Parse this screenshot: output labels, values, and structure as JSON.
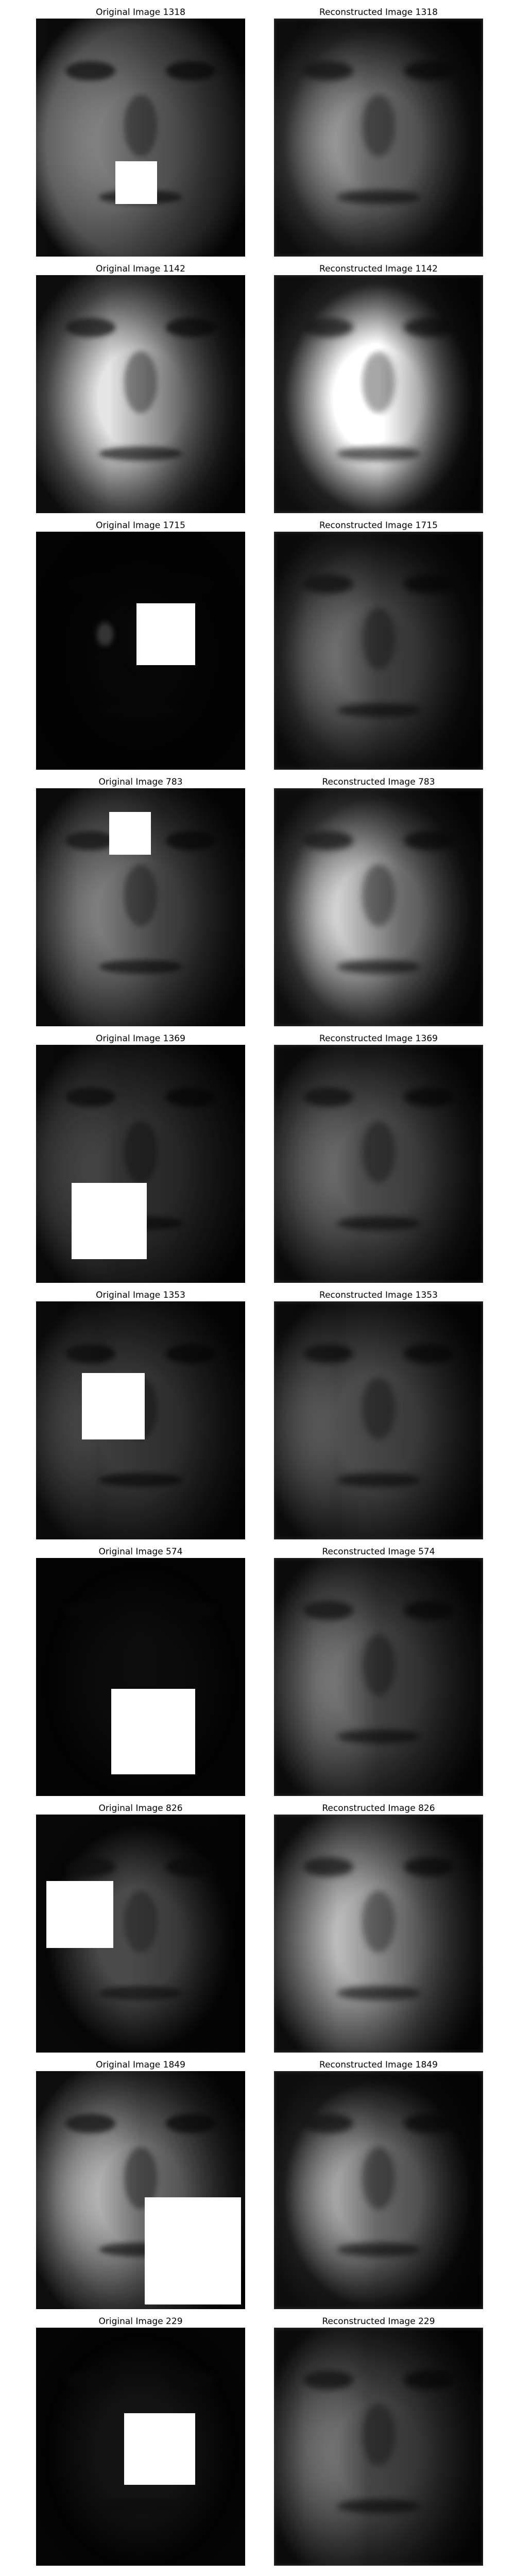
{
  "figure": {
    "rows": [
      {
        "original_title": "Original Image 1318",
        "reconstructed_title": "Reconstructed Image 1318"
      },
      {
        "original_title": "Original Image 1142",
        "reconstructed_title": "Reconstructed Image 1142"
      },
      {
        "original_title": "Original Image 1715",
        "reconstructed_title": "Reconstructed Image 1715"
      },
      {
        "original_title": "Original Image 783",
        "reconstructed_title": "Reconstructed Image 783"
      },
      {
        "original_title": "Original Image 1369",
        "reconstructed_title": "Reconstructed Image 1369"
      },
      {
        "original_title": "Original Image 1353",
        "reconstructed_title": "Reconstructed Image 1353"
      },
      {
        "original_title": "Original Image 574",
        "reconstructed_title": "Reconstructed Image 574"
      },
      {
        "original_title": "Original Image 826",
        "reconstructed_title": "Reconstructed Image 826"
      },
      {
        "original_title": "Original Image 1849",
        "reconstructed_title": "Reconstructed Image 1849"
      },
      {
        "original_title": "Original Image 229",
        "reconstructed_title": "Reconstructed Image 229"
      }
    ]
  }
}
